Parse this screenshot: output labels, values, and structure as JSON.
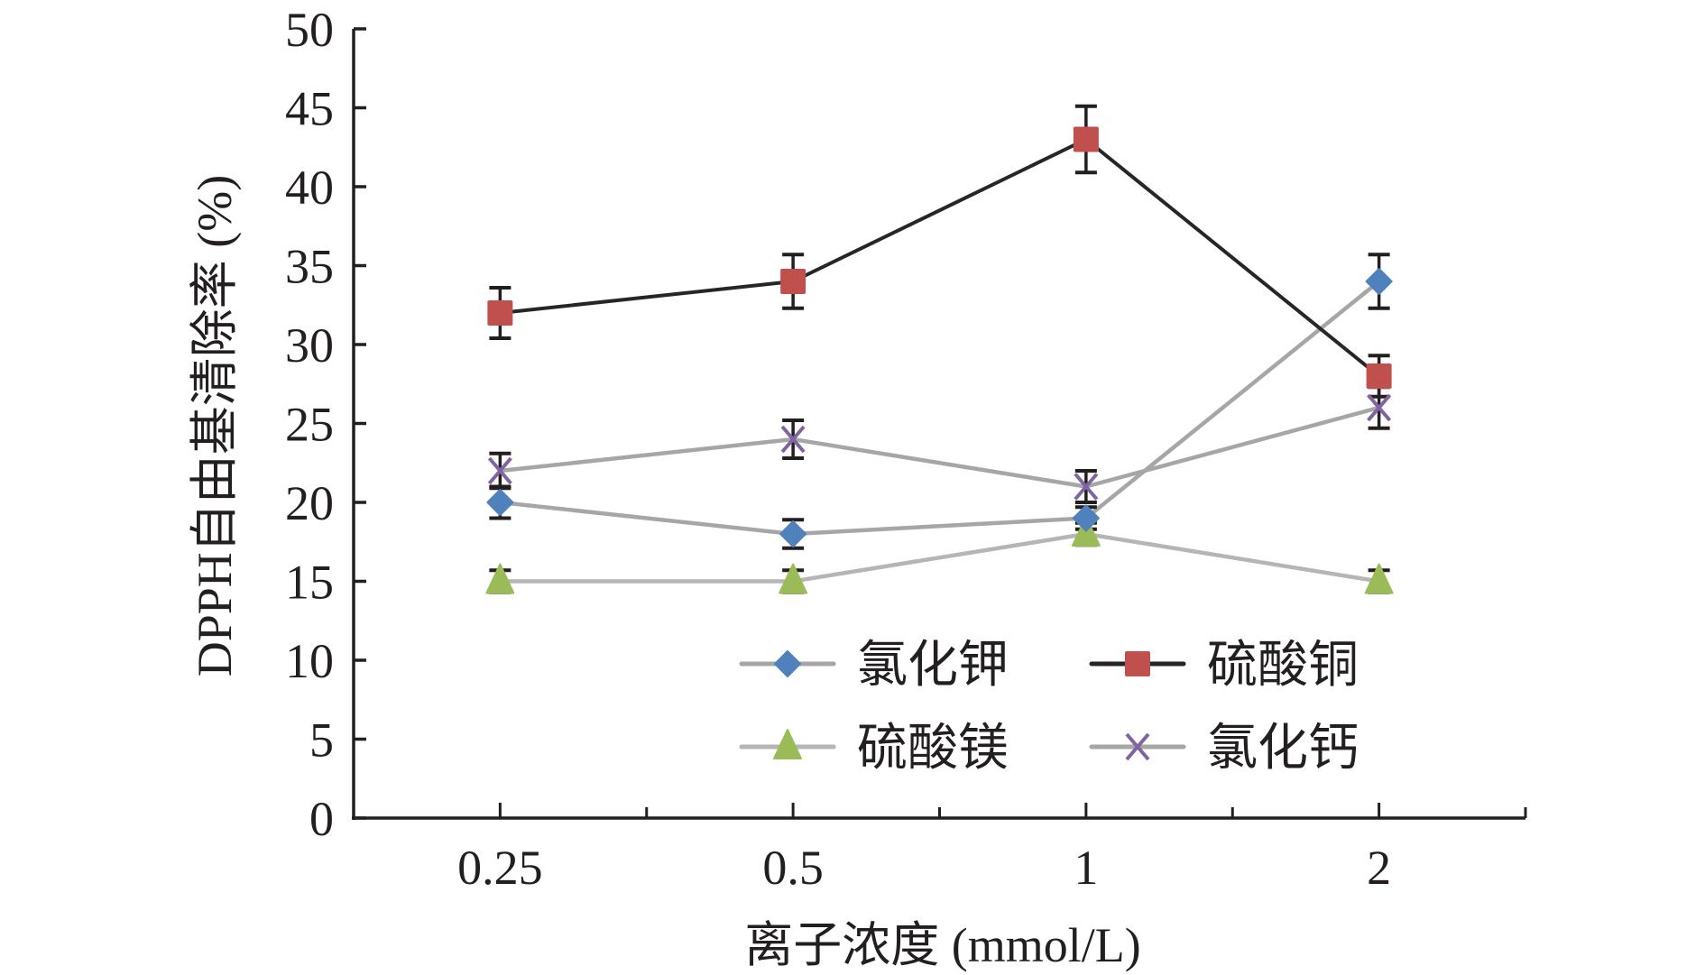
{
  "chart_data": {
    "type": "line",
    "title": "",
    "xlabel": "离子浓度 (mmol/L)",
    "ylabel": "DPPH自由基清除率 (%)",
    "categories": [
      "0.25",
      "0.5",
      "1",
      "2"
    ],
    "ylim": [
      0,
      50
    ],
    "yticks": [
      0,
      5,
      10,
      15,
      20,
      25,
      30,
      35,
      40,
      45,
      50
    ],
    "grid": false,
    "legend_position": "bottom-right",
    "series": [
      {
        "name": "氯化钾",
        "values": [
          20,
          18,
          19,
          34
        ],
        "errors": [
          1.0,
          0.9,
          0.7,
          1.7
        ],
        "marker": "diamond",
        "marker_color": "#4F81BD",
        "line_color": "#A6A6A6"
      },
      {
        "name": "硫酸铜",
        "values": [
          32,
          34,
          43,
          28
        ],
        "errors": [
          1.6,
          1.7,
          2.1,
          1.3
        ],
        "marker": "square",
        "marker_color": "#C0504D",
        "line_color": "#262626"
      },
      {
        "name": "硫酸镁",
        "values": [
          15,
          15,
          18,
          15
        ],
        "errors": [
          0.7,
          0.7,
          0.7,
          0.7
        ],
        "marker": "triangle",
        "marker_color": "#9BBB59",
        "line_color": "#B5B5B5"
      },
      {
        "name": "氯化钙",
        "values": [
          22,
          24,
          21,
          26
        ],
        "errors": [
          1.1,
          1.2,
          1.0,
          1.3
        ],
        "marker": "x",
        "marker_color": "#8064A2",
        "line_color": "#A6A6A6"
      }
    ]
  }
}
